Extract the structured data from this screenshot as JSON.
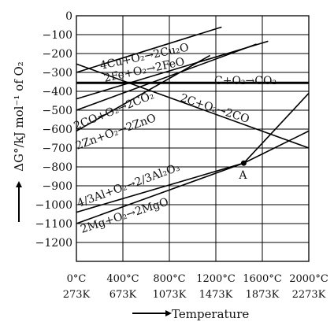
{
  "chart_data": {
    "type": "line",
    "title": "",
    "ylabel": "ΔG°/kJ mol⁻¹ of O₂",
    "xlabel": "Temperature",
    "xlim": [
      0,
      2000
    ],
    "ylim": [
      -1300,
      0
    ],
    "yticks": [
      0,
      -100,
      -200,
      -300,
      -400,
      -500,
      -600,
      -700,
      -800,
      -900,
      -1000,
      -1100,
      -1200
    ],
    "xtick_values": [
      0,
      400,
      800,
      1200,
      1600,
      2000
    ],
    "xticks_celsius": [
      "0°C",
      "400°C",
      "800°C",
      "1200°C",
      "1600°C",
      "2000°C"
    ],
    "xticks_kelvin": [
      "273K",
      "673K",
      "1073K",
      "1473K",
      "1873K",
      "2273K"
    ],
    "grid": true,
    "series": [
      {
        "name": "4Cu+O₂→2Cu₂O",
        "color": "#000000",
        "x": [
          0,
          1250
        ],
        "y": [
          -300,
          -60
        ]
      },
      {
        "name": "2Fe+O₂→2FeO",
        "color": "#000000",
        "x": [
          0,
          1550
        ],
        "y": [
          -500,
          -150
        ]
      },
      {
        "name": "C+O₂→CO₂",
        "color": "#000000",
        "x": [
          0,
          2000
        ],
        "y": [
          -355,
          -355
        ],
        "bold": true
      },
      {
        "name": "2C+O₂→2CO",
        "color": "#000000",
        "x": [
          0,
          2000
        ],
        "y": [
          -255,
          -700
        ]
      },
      {
        "name": "2CO+O₂→2CO₂",
        "color": "#000000",
        "x": [
          0,
          1650
        ],
        "y": [
          -440,
          -135
        ]
      },
      {
        "name": "2Zn+O₂→2ZnO",
        "color": "#000000",
        "x": [
          0,
          1150
        ],
        "y": [
          -610,
          -210
        ]
      },
      {
        "name": "4/3Al+O₂→2/3Al₂O₃",
        "color": "#000000",
        "x": [
          0,
          1440,
          2000
        ],
        "y": [
          -1040,
          -780,
          -610
        ]
      },
      {
        "name": "2Mg+O₂→2MgO",
        "color": "#000000",
        "x": [
          0,
          1440,
          2000
        ],
        "y": [
          -1100,
          -780,
          -410
        ]
      }
    ],
    "annotations": [
      {
        "text": "A",
        "x": 1440,
        "y": -780
      }
    ]
  }
}
